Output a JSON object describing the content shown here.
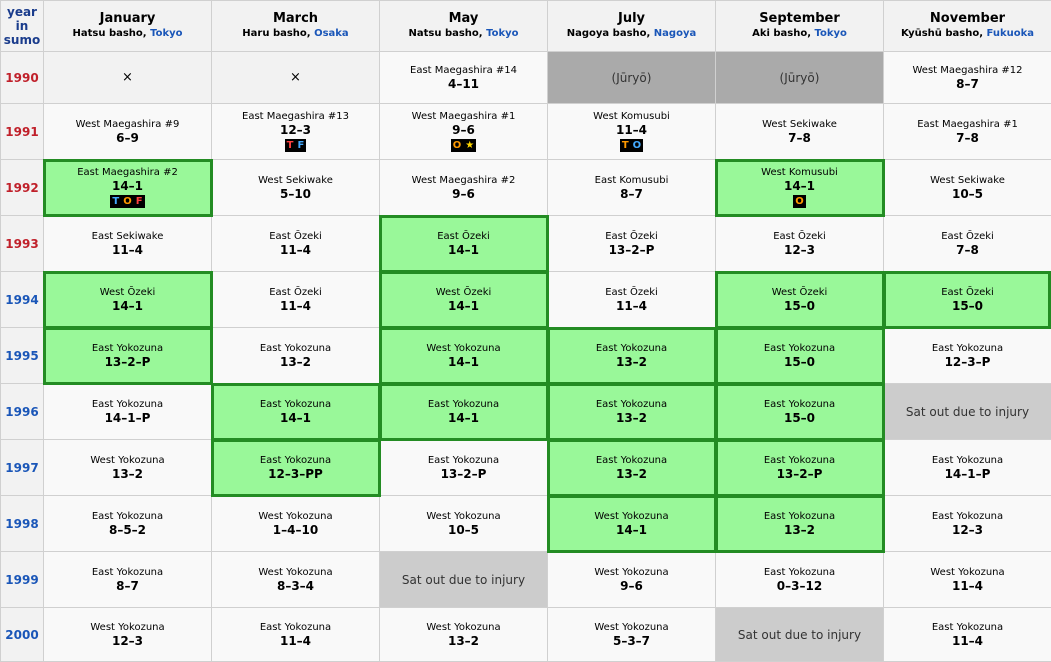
{
  "header": {
    "year_label": [
      "year",
      "in",
      "sumo"
    ],
    "months": [
      {
        "name": "January",
        "basho": "Hatsu basho, ",
        "location": "Tokyo"
      },
      {
        "name": "March",
        "basho": "Haru basho, ",
        "location": "Osaka"
      },
      {
        "name": "May",
        "basho": "Natsu basho, ",
        "location": "Tokyo"
      },
      {
        "name": "July",
        "basho": "Nagoya basho, ",
        "location": "Nagoya"
      },
      {
        "name": "September",
        "basho": "Aki basho, ",
        "location": "Tokyo"
      },
      {
        "name": "November",
        "basho": "Kyūshū basho, ",
        "location": "Fukuoka"
      }
    ]
  },
  "rows": [
    {
      "year": "1990",
      "cells": [
        {
          "type": "blank",
          "text": "×"
        },
        {
          "type": "blank",
          "text": "×"
        },
        {
          "type": "normal",
          "rank": "East Maegashira #14",
          "record": "4–11"
        },
        {
          "type": "juryo",
          "text": "(Jūryō)"
        },
        {
          "type": "juryo",
          "text": "(Jūryō)"
        },
        {
          "type": "normal",
          "rank": "West Maegashira #12",
          "record": "8–7"
        }
      ]
    },
    {
      "year": "1991",
      "cells": [
        {
          "type": "normal",
          "rank": "West Maegashira #9",
          "record": "6–9"
        },
        {
          "type": "normal",
          "rank": "East Maegashira #13",
          "record": "12–3",
          "badges": [
            {
              "t": "T",
              "c": "#ff4040"
            },
            {
              "t": "F",
              "c": "#44aaff"
            }
          ]
        },
        {
          "type": "normal",
          "rank": "West Maegashira #1",
          "record": "9–6",
          "badges": [
            {
              "t": "O",
              "c": "#ff9900"
            },
            {
              "t": "★",
              "c": "#ffd700"
            }
          ]
        },
        {
          "type": "normal",
          "rank": "West Komusubi",
          "record": "11–4",
          "badges": [
            {
              "t": "T",
              "c": "#ff9900"
            },
            {
              "t": "O",
              "c": "#44aaff"
            }
          ]
        },
        {
          "type": "normal",
          "rank": "West Sekiwake",
          "record": "7–8"
        },
        {
          "type": "normal",
          "rank": "East Maegashira #1",
          "record": "7–8"
        }
      ]
    },
    {
      "year": "1992",
      "cells": [
        {
          "type": "win",
          "rank": "East Maegashira #2",
          "record": "14–1",
          "badges": [
            {
              "t": "T",
              "c": "#44aaff"
            },
            {
              "t": "O",
              "c": "#ff9900"
            },
            {
              "t": "F",
              "c": "#ff4040"
            }
          ]
        },
        {
          "type": "normal",
          "rank": "West Sekiwake",
          "record": "5–10"
        },
        {
          "type": "normal",
          "rank": "West Maegashira #2",
          "record": "9–6"
        },
        {
          "type": "normal",
          "rank": "East Komusubi",
          "record": "8–7"
        },
        {
          "type": "win",
          "rank": "West Komusubi",
          "record": "14–1",
          "badges": [
            {
              "t": "O",
              "c": "#ff9900"
            }
          ]
        },
        {
          "type": "normal",
          "rank": "West Sekiwake",
          "record": "10–5"
        }
      ]
    },
    {
      "year": "1993",
      "cells": [
        {
          "type": "normal",
          "rank": "East Sekiwake",
          "record": "11–4"
        },
        {
          "type": "normal",
          "rank": "East Ōzeki",
          "record": "11–4"
        },
        {
          "type": "win",
          "rank": "East Ōzeki",
          "record": "14–1"
        },
        {
          "type": "normal",
          "rank": "East Ōzeki",
          "record": "13–2–P"
        },
        {
          "type": "normal",
          "rank": "East Ōzeki",
          "record": "12–3"
        },
        {
          "type": "normal",
          "rank": "East Ōzeki",
          "record": "7–8"
        }
      ]
    },
    {
      "year": "1994",
      "cells": [
        {
          "type": "win",
          "rank": "West Ōzeki",
          "record": "14–1"
        },
        {
          "type": "normal",
          "rank": "East Ōzeki",
          "record": "11–4"
        },
        {
          "type": "win",
          "rank": "West Ōzeki",
          "record": "14–1"
        },
        {
          "type": "normal",
          "rank": "East Ōzeki",
          "record": "11–4"
        },
        {
          "type": "win",
          "rank": "West Ōzeki",
          "record": "15–0"
        },
        {
          "type": "win",
          "rank": "East Ōzeki",
          "record": "15–0"
        }
      ]
    },
    {
      "year": "1995",
      "cells": [
        {
          "type": "win",
          "rank": "East Yokozuna",
          "record": "13–2–P"
        },
        {
          "type": "normal",
          "rank": "East Yokozuna",
          "record": "13–2"
        },
        {
          "type": "win",
          "rank": "West Yokozuna",
          "record": "14–1"
        },
        {
          "type": "win",
          "rank": "East Yokozuna",
          "record": "13–2"
        },
        {
          "type": "win",
          "rank": "East Yokozuna",
          "record": "15–0"
        },
        {
          "type": "normal",
          "rank": "East Yokozuna",
          "record": "12–3–P"
        }
      ]
    },
    {
      "year": "1996",
      "cells": [
        {
          "type": "normal",
          "rank": "East Yokozuna",
          "record": "14–1–P"
        },
        {
          "type": "win",
          "rank": "East Yokozuna",
          "record": "14–1"
        },
        {
          "type": "win",
          "rank": "East Yokozuna",
          "record": "14–1"
        },
        {
          "type": "win",
          "rank": "East Yokozuna",
          "record": "13–2"
        },
        {
          "type": "win",
          "rank": "East Yokozuna",
          "record": "15–0"
        },
        {
          "type": "injury",
          "text": "Sat out due to injury"
        }
      ]
    },
    {
      "year": "1997",
      "cells": [
        {
          "type": "normal",
          "rank": "West Yokozuna",
          "record": "13–2"
        },
        {
          "type": "win",
          "rank": "East Yokozuna",
          "record": "12–3–PP"
        },
        {
          "type": "normal",
          "rank": "East Yokozuna",
          "record": "13–2–P"
        },
        {
          "type": "win",
          "rank": "East Yokozuna",
          "record": "13–2"
        },
        {
          "type": "win",
          "rank": "East Yokozuna",
          "record": "13–2–P"
        },
        {
          "type": "normal",
          "rank": "East Yokozuna",
          "record": "14–1–P"
        }
      ]
    },
    {
      "year": "1998",
      "cells": [
        {
          "type": "normal",
          "rank": "East Yokozuna",
          "record": "8–5–2"
        },
        {
          "type": "normal",
          "rank": "West Yokozuna",
          "record": "1–4–10"
        },
        {
          "type": "normal",
          "rank": "West Yokozuna",
          "record": "10–5"
        },
        {
          "type": "win",
          "rank": "West Yokozuna",
          "record": "14–1"
        },
        {
          "type": "win",
          "rank": "East Yokozuna",
          "record": "13–2"
        },
        {
          "type": "normal",
          "rank": "East Yokozuna",
          "record": "12–3"
        }
      ]
    },
    {
      "year": "1999",
      "cells": [
        {
          "type": "normal",
          "rank": "East Yokozuna",
          "record": "8–7"
        },
        {
          "type": "normal",
          "rank": "West Yokozuna",
          "record": "8–3–4"
        },
        {
          "type": "injury",
          "text": "Sat out due to injury"
        },
        {
          "type": "normal",
          "rank": "West Yokozuna",
          "record": "9–6"
        },
        {
          "type": "normal",
          "rank": "East Yokozuna",
          "record": "0–3–12"
        },
        {
          "type": "normal",
          "rank": "West Yokozuna",
          "record": "11–4"
        }
      ]
    },
    {
      "year": "2000",
      "cells": [
        {
          "type": "normal",
          "rank": "West Yokozuna",
          "record": "12–3"
        },
        {
          "type": "normal",
          "rank": "East Yokozuna",
          "record": "11–4"
        },
        {
          "type": "normal",
          "rank": "West Yokozuna",
          "record": "13–2"
        },
        {
          "type": "normal",
          "rank": "West Yokozuna",
          "record": "5–3–7"
        },
        {
          "type": "injury",
          "text": "Sat out due to injury"
        },
        {
          "type": "normal",
          "rank": "East Yokozuna",
          "record": "11–4"
        }
      ]
    }
  ]
}
